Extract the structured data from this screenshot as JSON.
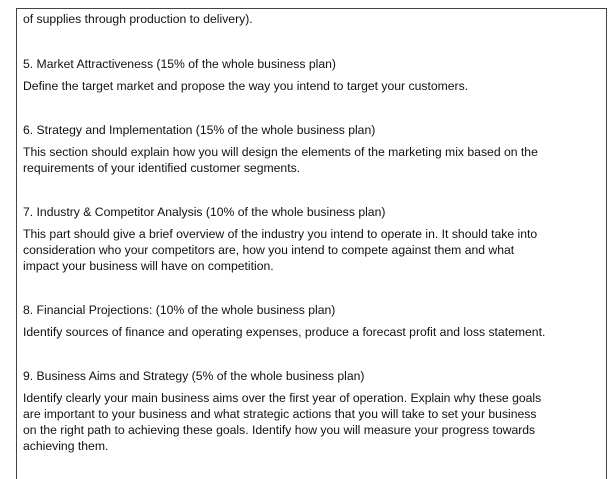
{
  "intro": "of supplies through production to delivery).",
  "sections": [
    {
      "heading": "5.  Market Attractiveness (15% of the whole business plan)",
      "body": [
        "Define the target market and propose the way you intend to target your customers."
      ]
    },
    {
      "heading": "6. Strategy and Implementation (15% of the whole business plan)",
      "body": [
        "This section should explain how you will design the elements of the marketing mix based on the",
        "requirements of your identified customer segments."
      ]
    },
    {
      "heading": "7. Industry & Competitor Analysis (10% of the whole business plan)",
      "body": [
        "This part should give a brief overview of the industry you intend to operate in. It should take into",
        "consideration who your competitors are, how you intend to compete against them and what",
        "impact your business will have on competition."
      ]
    },
    {
      "heading": "8. Financial Projections: (10% of the whole business plan)",
      "body": [
        "Identify sources of finance and operating expenses, produce a forecast profit and loss statement."
      ]
    },
    {
      "heading": "9. Business Aims and Strategy (5% of the whole business plan)",
      "body": [
        "Identify clearly your main business aims over the first year of operation. Explain why these goals",
        "are important to your business and what strategic actions that you will take to set your business",
        "on the right path to achieving these goals. Identify how you will measure your progress towards",
        "achieving them."
      ]
    }
  ]
}
